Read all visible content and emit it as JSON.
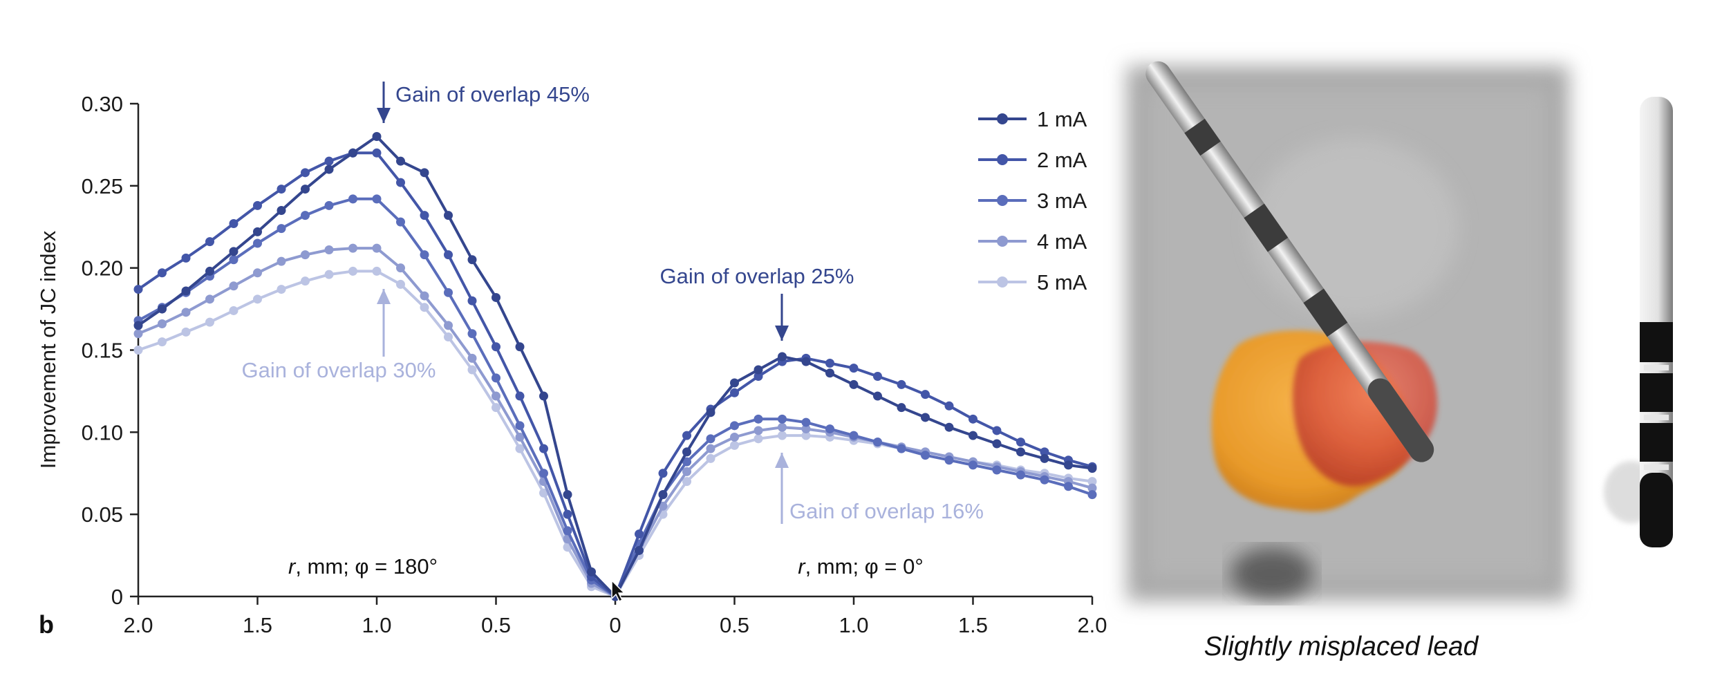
{
  "chart_data": {
    "type": "line",
    "panel_label": "b",
    "ylabel": "Improvement of JC index",
    "ylim": [
      0,
      0.3
    ],
    "y_ticks": [
      "0",
      "0.05",
      "0.10",
      "0.15",
      "0.20",
      "0.25",
      "0.30"
    ],
    "x_ticks": [
      "2.0",
      "1.5",
      "1.0",
      "0.5",
      "0",
      "0.5",
      "1.0",
      "1.5",
      "2.0"
    ],
    "x_domain": [
      -2.0,
      2.0
    ],
    "x_note": "left half: phi = 180 deg (negative side), right half: phi = 0 deg",
    "sub_labels": {
      "left": {
        "italic": "r",
        "rest": ", mm; φ = 180°"
      },
      "right": {
        "italic": "r",
        "rest": ", mm; φ = 0°"
      }
    },
    "x": [
      -2.0,
      -1.9,
      -1.8,
      -1.7,
      -1.6,
      -1.5,
      -1.4,
      -1.3,
      -1.2,
      -1.1,
      -1.0,
      -0.9,
      -0.8,
      -0.7,
      -0.6,
      -0.5,
      -0.4,
      -0.3,
      -0.2,
      -0.1,
      0,
      0.1,
      0.2,
      0.3,
      0.4,
      0.5,
      0.6,
      0.7,
      0.8,
      0.9,
      1.0,
      1.1,
      1.2,
      1.3,
      1.4,
      1.5,
      1.6,
      1.7,
      1.8,
      1.9,
      2.0
    ],
    "series": [
      {
        "name": "1 mA",
        "color": "#34468e",
        "values": [
          0.165,
          0.175,
          0.186,
          0.198,
          0.21,
          0.222,
          0.235,
          0.248,
          0.26,
          0.27,
          0.28,
          0.265,
          0.258,
          0.232,
          0.205,
          0.182,
          0.152,
          0.122,
          0.062,
          0.015,
          0.0,
          0.028,
          0.062,
          0.088,
          0.112,
          0.13,
          0.138,
          0.146,
          0.143,
          0.136,
          0.129,
          0.122,
          0.115,
          0.109,
          0.103,
          0.098,
          0.093,
          0.088,
          0.084,
          0.08,
          0.078
        ]
      },
      {
        "name": "2 mA",
        "color": "#4356a8",
        "values": [
          0.187,
          0.197,
          0.206,
          0.216,
          0.227,
          0.238,
          0.248,
          0.258,
          0.265,
          0.27,
          0.27,
          0.252,
          0.232,
          0.208,
          0.18,
          0.152,
          0.122,
          0.09,
          0.05,
          0.012,
          0.0,
          0.038,
          0.075,
          0.098,
          0.114,
          0.124,
          0.134,
          0.143,
          0.145,
          0.142,
          0.139,
          0.134,
          0.129,
          0.123,
          0.116,
          0.108,
          0.101,
          0.094,
          0.088,
          0.083,
          0.079
        ]
      },
      {
        "name": "3 mA",
        "color": "#5a6dbb",
        "values": [
          0.168,
          0.176,
          0.185,
          0.195,
          0.205,
          0.215,
          0.224,
          0.232,
          0.238,
          0.242,
          0.242,
          0.228,
          0.208,
          0.185,
          0.16,
          0.133,
          0.104,
          0.075,
          0.04,
          0.01,
          0.0,
          0.032,
          0.062,
          0.082,
          0.096,
          0.104,
          0.108,
          0.108,
          0.106,
          0.102,
          0.098,
          0.094,
          0.09,
          0.086,
          0.083,
          0.08,
          0.077,
          0.074,
          0.071,
          0.067,
          0.062
        ]
      },
      {
        "name": "4 mA",
        "color": "#8e9ad0",
        "values": [
          0.16,
          0.166,
          0.173,
          0.181,
          0.189,
          0.197,
          0.204,
          0.208,
          0.211,
          0.212,
          0.212,
          0.2,
          0.183,
          0.165,
          0.145,
          0.122,
          0.097,
          0.07,
          0.035,
          0.008,
          0.0,
          0.028,
          0.055,
          0.076,
          0.09,
          0.097,
          0.101,
          0.103,
          0.102,
          0.1,
          0.097,
          0.094,
          0.091,
          0.088,
          0.085,
          0.082,
          0.079,
          0.076,
          0.073,
          0.07,
          0.066
        ]
      },
      {
        "name": "5 mA",
        "color": "#bcc4e4",
        "values": [
          0.15,
          0.155,
          0.161,
          0.167,
          0.174,
          0.181,
          0.187,
          0.192,
          0.196,
          0.198,
          0.198,
          0.19,
          0.176,
          0.158,
          0.138,
          0.115,
          0.09,
          0.063,
          0.03,
          0.006,
          0.0,
          0.025,
          0.05,
          0.07,
          0.084,
          0.092,
          0.096,
          0.098,
          0.098,
          0.097,
          0.095,
          0.093,
          0.09,
          0.088,
          0.085,
          0.082,
          0.08,
          0.077,
          0.075,
          0.072,
          0.07
        ]
      }
    ],
    "annotations": [
      {
        "text": "Gain of overlap 45%",
        "x": -1.0,
        "y": 0.28,
        "color": "#34468e",
        "arrow": "down"
      },
      {
        "text": "Gain of overlap 25%",
        "x": 0.7,
        "y": 0.146,
        "color": "#34468e",
        "arrow": "down"
      },
      {
        "text": "Gain of overlap 30%",
        "x": -1.0,
        "y": 0.198,
        "color": "#a9b2dc",
        "arrow": "up"
      },
      {
        "text": "Gain of overlap 16%",
        "x": 0.7,
        "y": 0.098,
        "color": "#a9b2dc",
        "arrow": "up"
      }
    ],
    "legend_position": "top-right",
    "grid": false
  },
  "figure": {
    "caption": "Slightly misplaced lead",
    "image_description": "3D rendering of a deep brain stimulation lead over orange and red volumes on grey background, with a separate lead schematic at right"
  }
}
